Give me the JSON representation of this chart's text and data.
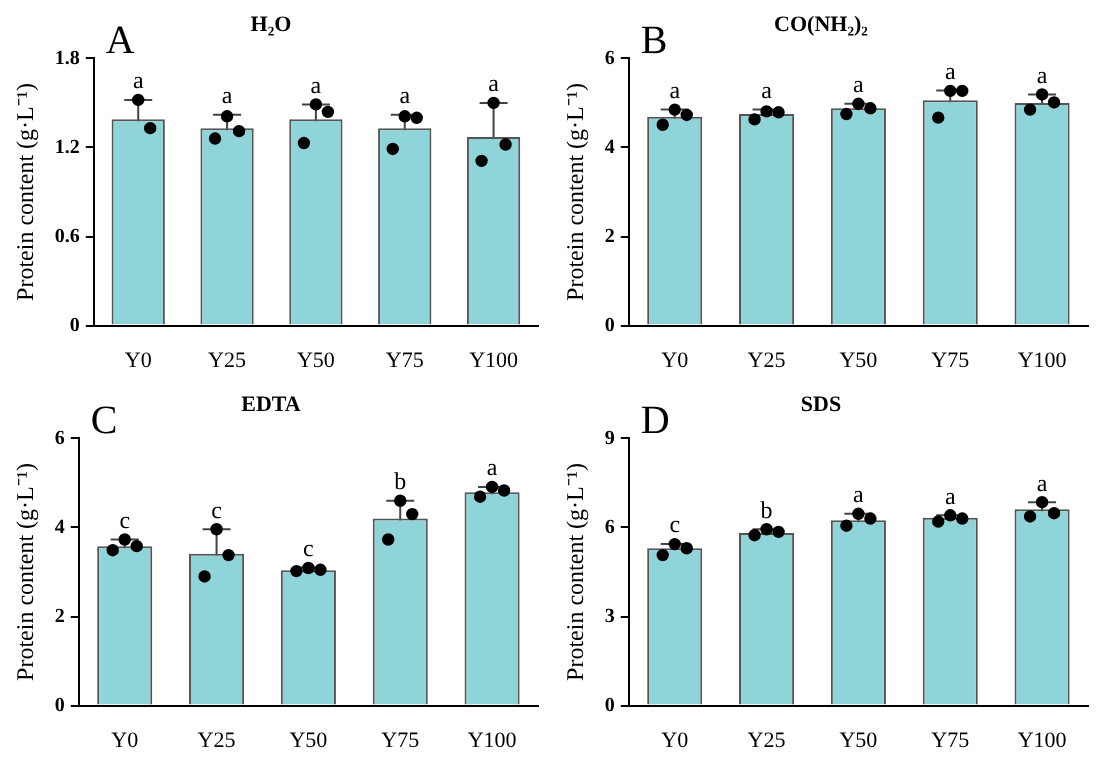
{
  "chart_data": [
    {
      "type": "bar",
      "title": "H₂O",
      "ylabel": "Protein content (g·L⁻¹)",
      "categories": [
        "Y0",
        "Y25",
        "Y50",
        "Y75",
        "Y100"
      ],
      "ylim": [
        0,
        1.8
      ],
      "yticks": [
        0,
        0.6,
        1.2,
        1.8
      ],
      "grid": false,
      "series": [
        {
          "color": "#8fd4d9",
          "values": [
            1.39,
            1.33,
            1.39,
            1.33,
            1.27
          ],
          "errors": [
            0.13,
            0.09,
            0.1,
            0.09,
            0.23
          ]
        },
        {
          "type": "scatter",
          "color": "#000000",
          "x": [
            "Y0",
            "Y0",
            "Y25",
            "Y25",
            "Y25",
            "Y50",
            "Y50",
            "Y50",
            "Y75",
            "Y75",
            "Y75",
            "Y100",
            "Y100",
            "Y100"
          ],
          "values": [
            1.52,
            1.33,
            1.41,
            1.31,
            1.26,
            1.49,
            1.44,
            1.23,
            1.41,
            1.4,
            1.19,
            1.5,
            1.22,
            1.11
          ]
        }
      ],
      "annotations": [
        "A",
        {
          "text": "a",
          "x": "Y0",
          "y": 1.52
        },
        {
          "text": "a",
          "x": "Y25",
          "y": 1.42
        },
        {
          "text": "a",
          "x": "Y50",
          "y": 1.49
        },
        {
          "text": "a",
          "x": "Y75",
          "y": 1.42
        },
        {
          "text": "a",
          "x": "Y100",
          "y": 1.5
        }
      ]
    },
    {
      "type": "bar",
      "title": "CO(NH₂)₂",
      "ylabel": "Protein content (g·L⁻¹)",
      "categories": [
        "Y0",
        "Y25",
        "Y50",
        "Y75",
        "Y100"
      ],
      "ylim": [
        0,
        6
      ],
      "yticks": [
        0,
        2,
        4,
        6
      ],
      "grid": false,
      "series": [
        {
          "color": "#8fd4d9",
          "values": [
            4.69,
            4.75,
            4.88,
            5.06,
            5.0
          ],
          "errors": [
            0.16,
            0.1,
            0.1,
            0.22,
            0.19
          ]
        },
        {
          "type": "scatter",
          "color": "#000000",
          "x": [
            "Y0",
            "Y0",
            "Y0",
            "Y25",
            "Y25",
            "Y25",
            "Y50",
            "Y50",
            "Y50",
            "Y75",
            "Y75",
            "Y75",
            "Y100",
            "Y100",
            "Y100"
          ],
          "values": [
            4.85,
            4.73,
            4.51,
            4.81,
            4.79,
            4.63,
            4.98,
            4.88,
            4.75,
            5.27,
            5.27,
            4.67,
            5.19,
            5.01,
            4.85
          ]
        }
      ],
      "annotations": [
        "B",
        {
          "text": "a",
          "x": "Y0",
          "y": 4.85
        },
        {
          "text": "a",
          "x": "Y25",
          "y": 4.85
        },
        {
          "text": "a",
          "x": "Y50",
          "y": 4.98
        },
        {
          "text": "a",
          "x": "Y75",
          "y": 5.28
        },
        {
          "text": "a",
          "x": "Y100",
          "y": 5.19
        }
      ]
    },
    {
      "type": "bar",
      "title": "EDTA",
      "ylabel": "Protein content (g·L⁻¹)",
      "categories": [
        "Y0",
        "Y25",
        "Y50",
        "Y75",
        "Y100"
      ],
      "ylim": [
        0,
        6
      ],
      "yticks": [
        0,
        2,
        4,
        6
      ],
      "grid": false,
      "series": [
        {
          "color": "#8fd4d9",
          "values": [
            3.58,
            3.41,
            3.04,
            4.2,
            4.79
          ],
          "errors": [
            0.15,
            0.55,
            0.06,
            0.4,
            0.12
          ]
        },
        {
          "type": "scatter",
          "color": "#000000",
          "x": [
            "Y0",
            "Y0",
            "Y0",
            "Y25",
            "Y25",
            "Y25",
            "Y50",
            "Y50",
            "Y50",
            "Y75",
            "Y75",
            "Y75",
            "Y100",
            "Y100",
            "Y100"
          ],
          "values": [
            3.73,
            3.58,
            3.49,
            3.96,
            3.38,
            2.9,
            3.09,
            3.05,
            3.02,
            4.6,
            4.3,
            3.73,
            4.91,
            4.83,
            4.69
          ]
        }
      ],
      "annotations": [
        "C",
        {
          "text": "c",
          "x": "Y0",
          "y": 3.73
        },
        {
          "text": "c",
          "x": "Y25",
          "y": 3.96
        },
        {
          "text": "c",
          "x": "Y50",
          "y": 3.1
        },
        {
          "text": "b",
          "x": "Y75",
          "y": 4.6
        },
        {
          "text": "a",
          "x": "Y100",
          "y": 4.91
        }
      ]
    },
    {
      "type": "bar",
      "title": "SDS",
      "ylabel": "Protein content (g·L⁻¹)",
      "categories": [
        "Y0",
        "Y25",
        "Y50",
        "Y75",
        "Y100"
      ],
      "ylim": [
        0,
        9
      ],
      "yticks": [
        0,
        3,
        6,
        9
      ],
      "grid": false,
      "series": [
        {
          "color": "#8fd4d9",
          "values": [
            5.3,
            5.81,
            6.24,
            6.33,
            6.61
          ],
          "errors": [
            0.14,
            0.13,
            0.22,
            0.08,
            0.24
          ]
        },
        {
          "type": "scatter",
          "color": "#000000",
          "x": [
            "Y0",
            "Y0",
            "Y0",
            "Y25",
            "Y25",
            "Y25",
            "Y50",
            "Y50",
            "Y50",
            "Y75",
            "Y75",
            "Y75",
            "Y100",
            "Y100",
            "Y100"
          ],
          "values": [
            5.44,
            5.3,
            5.07,
            5.94,
            5.85,
            5.74,
            6.46,
            6.3,
            6.06,
            6.41,
            6.3,
            6.2,
            6.85,
            6.48,
            6.37
          ]
        }
      ],
      "annotations": [
        "D",
        {
          "text": "c",
          "x": "Y0",
          "y": 5.44
        },
        {
          "text": "b",
          "x": "Y25",
          "y": 5.94
        },
        {
          "text": "a",
          "x": "Y50",
          "y": 6.46
        },
        {
          "text": "a",
          "x": "Y75",
          "y": 6.41
        },
        {
          "text": "a",
          "x": "Y100",
          "y": 6.85
        }
      ]
    }
  ]
}
